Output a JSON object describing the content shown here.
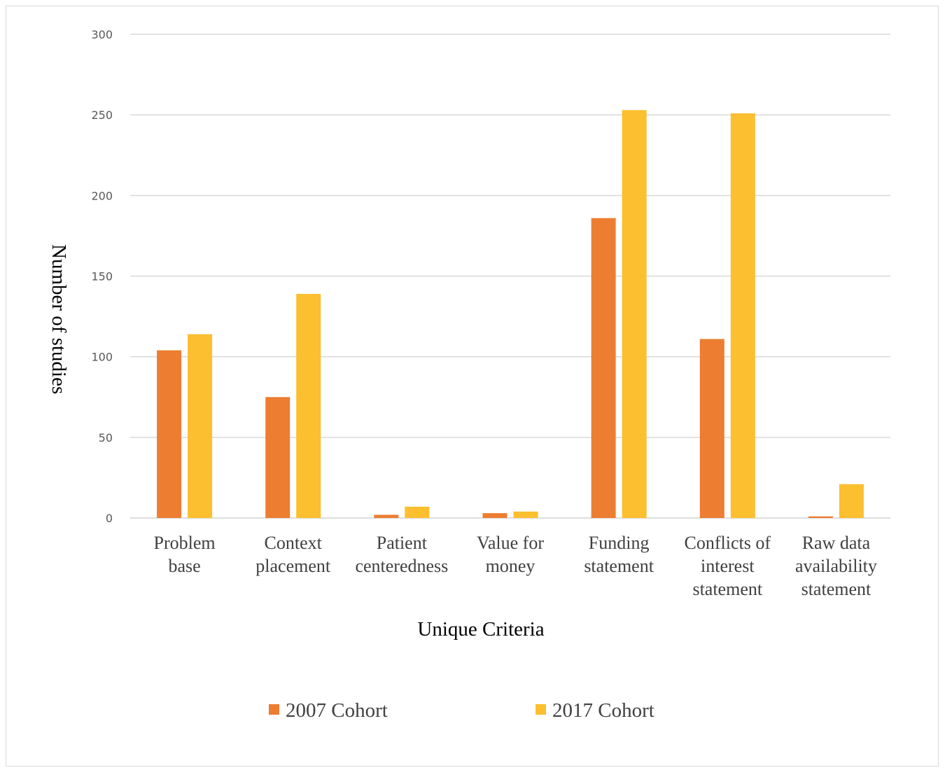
{
  "chart_data": {
    "type": "bar",
    "categories": [
      [
        "Problem",
        "base"
      ],
      [
        "Context",
        "placement"
      ],
      [
        "Patient",
        "centeredness"
      ],
      [
        "Value for",
        "money"
      ],
      [
        "Funding",
        "statement"
      ],
      [
        "Conflicts of",
        "interest",
        "statement"
      ],
      [
        "Raw data",
        "availability",
        "statement"
      ]
    ],
    "series": [
      {
        "name": "2007 Cohort",
        "color": "#ed7d31",
        "values": [
          104,
          75,
          2,
          3,
          186,
          111,
          1
        ]
      },
      {
        "name": "2017 Cohort",
        "color": "#fbbf2f",
        "values": [
          114,
          139,
          7,
          4,
          253,
          251,
          21
        ]
      }
    ],
    "xlabel": "Unique Criteria",
    "ylabel": "Number of studies",
    "ylim": [
      0,
      300
    ],
    "yticks": [
      0,
      50,
      100,
      150,
      200,
      250,
      300
    ],
    "grid": true,
    "legend_position": "bottom"
  }
}
